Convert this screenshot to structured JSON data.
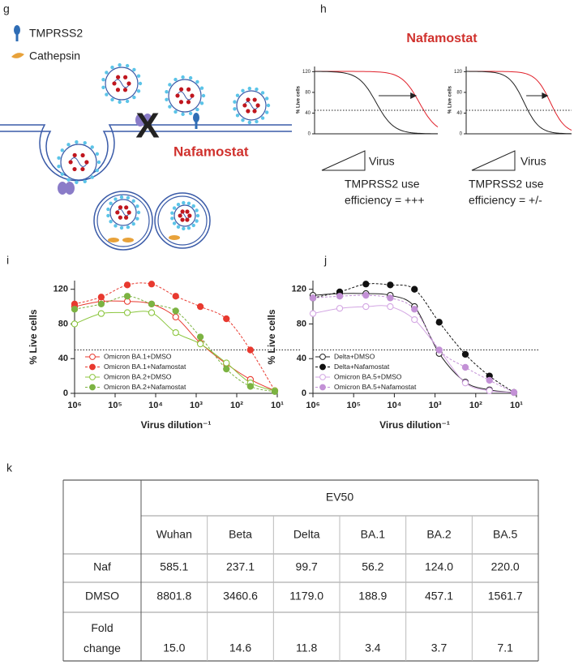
{
  "figure": {
    "panel_labels": [
      "g",
      "h",
      "i",
      "j",
      "k"
    ],
    "g": {
      "legend": [
        "TMPRSS2",
        "Cathepsin"
      ],
      "block": "X",
      "inhibitor": "Nafamostat"
    },
    "h": {
      "title": "Nafamostat",
      "y_label": "% Live cells",
      "yticks": [
        0,
        40,
        80,
        120
      ],
      "ylim": [
        0,
        130
      ],
      "x_label": "Virus",
      "captions": [
        [
          "TMPRSS2 use",
          "efficiency = +++"
        ],
        [
          "TMPRSS2 use",
          "efficiency = +/-"
        ]
      ]
    }
  },
  "chart_data": [
    {
      "type": "scatter",
      "y_label": "% Live cells",
      "x_label": "Virus dilution⁻¹",
      "log_x": true,
      "xlim": [
        1000000,
        10
      ],
      "ylim": [
        0,
        130
      ],
      "yticks": [
        0,
        40,
        80,
        120
      ],
      "xticks": [
        {
          "value": 1000000,
          "label": "10⁶"
        },
        {
          "value": 100000,
          "label": "10⁵"
        },
        {
          "value": 10000,
          "label": "10⁴"
        },
        {
          "value": 1000,
          "label": "10³"
        },
        {
          "value": 100,
          "label": "10²"
        },
        {
          "value": 10,
          "label": "10¹"
        }
      ],
      "hline": 50,
      "legend": "lower left",
      "series": [
        {
          "name": "Omicron BA.1+DMSO",
          "color": "#e8392f",
          "filled": false,
          "line_style": "solid",
          "x": [
            1000000,
            220000,
            50000,
            12600,
            3200,
            790,
            180,
            46,
            11.5
          ],
          "values": [
            100,
            106,
            106,
            103,
            88,
            58,
            34,
            16,
            3
          ]
        },
        {
          "name": "Omicron BA.1+Nafamostat",
          "color": "#e8392f",
          "filled": true,
          "line_style": "dashed",
          "x": [
            1000000,
            220000,
            50000,
            12600,
            3200,
            790,
            180,
            46,
            11.5
          ],
          "values": [
            103,
            111,
            125,
            126,
            112,
            100,
            86,
            50,
            3
          ]
        },
        {
          "name": "Omicron BA.2+DMSO",
          "color": "#8cc63f",
          "filled": false,
          "line_style": "solid",
          "x": [
            1000000,
            220000,
            50000,
            12600,
            3200,
            790,
            180,
            46,
            11.5
          ],
          "values": [
            80,
            92,
            93,
            93,
            70,
            57,
            35,
            12,
            3
          ]
        },
        {
          "name": "Omicron BA.2+Nafamostat",
          "color": "#7cb342",
          "filled": true,
          "line_style": "dashed",
          "x": [
            1000000,
            220000,
            50000,
            12600,
            3200,
            790,
            180,
            46,
            11.5
          ],
          "values": [
            97,
            103,
            112,
            103,
            95,
            65,
            28,
            8,
            2
          ]
        }
      ]
    },
    {
      "type": "scatter",
      "y_label": "% Live cells",
      "x_label": "Virus dilution⁻¹",
      "log_x": true,
      "xlim": [
        1000000,
        10
      ],
      "ylim": [
        0,
        130
      ],
      "yticks": [
        0,
        40,
        80,
        120
      ],
      "xticks": [
        {
          "value": 1000000,
          "label": "10⁶"
        },
        {
          "value": 100000,
          "label": "10⁵"
        },
        {
          "value": 10000,
          "label": "10⁴"
        },
        {
          "value": 1000,
          "label": "10³"
        },
        {
          "value": 100,
          "label": "10²"
        },
        {
          "value": 10,
          "label": "10¹"
        }
      ],
      "hline": 50,
      "legend": "lower left",
      "series": [
        {
          "name": "Delta+DMSO",
          "color": "#222222",
          "filled": false,
          "line_style": "solid",
          "x": [
            1000000,
            220000,
            50000,
            12600,
            3200,
            790,
            180,
            46,
            11.5
          ],
          "values": [
            113,
            115,
            115,
            113,
            100,
            46,
            13,
            4,
            1
          ]
        },
        {
          "name": "Delta+Nafamostat",
          "color": "#111111",
          "filled": true,
          "line_style": "dashed",
          "x": [
            1000000,
            220000,
            50000,
            12600,
            3200,
            790,
            180,
            46,
            11.5
          ],
          "values": [
            110,
            117,
            126,
            125,
            120,
            82,
            45,
            20,
            1
          ]
        },
        {
          "name": "Omicron BA.5+DMSO",
          "color": "#d3a6e3",
          "filled": false,
          "line_style": "solid",
          "x": [
            1000000,
            220000,
            50000,
            12600,
            3200,
            790,
            180,
            46,
            11.5
          ],
          "values": [
            92,
            98,
            100,
            100,
            85,
            50,
            12,
            3,
            1
          ]
        },
        {
          "name": "Omicron BA.5+Nafamostat",
          "color": "#c391d6",
          "filled": true,
          "line_style": "dashed",
          "x": [
            1000000,
            220000,
            50000,
            12600,
            3200,
            790,
            180,
            46,
            11.5
          ],
          "values": [
            110,
            112,
            113,
            110,
            97,
            50,
            30,
            15,
            1
          ]
        }
      ]
    }
  ],
  "table": {
    "group_header": "EV50",
    "columns": [
      "Wuhan",
      "Beta",
      "Delta",
      "BA.1",
      "BA.2",
      "BA.5"
    ],
    "rows": [
      {
        "label": "Naf",
        "values": [
          "585.1",
          "237.1",
          "99.7",
          "56.2",
          "124.0",
          "220.0"
        ]
      },
      {
        "label": "DMSO",
        "values": [
          "8801.8",
          "3460.6",
          "1179.0",
          "188.9",
          "457.1",
          "1561.7"
        ]
      },
      {
        "label": "Fold change",
        "values": [
          "15.0",
          "14.6",
          "11.8",
          "3.4",
          "3.7",
          "7.1"
        ]
      }
    ]
  }
}
